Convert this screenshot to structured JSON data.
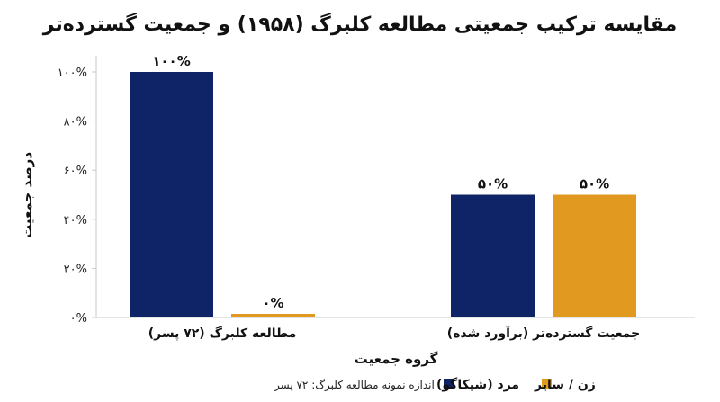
{
  "chart_data": {
    "type": "bar",
    "title": "مقایسه ترکیب جمعیتی مطالعه کلبرگ (۱۹۵۸) و جمعیت گسترده‌تر",
    "xlabel": "گروه جمعیت",
    "ylabel": "درصد جمعیت",
    "categories": [
      "مطالعه کلبرگ (۷۲ پسر)",
      "جمعیت گسترده‌تر (برآورد شده)"
    ],
    "series": [
      {
        "name": "مرد (شیکاگو)",
        "values": [
          100,
          50
        ],
        "labels": [
          "۱۰۰%",
          "۵۰%"
        ],
        "color": "#0f2467"
      },
      {
        "name": "زن / سایر",
        "values": [
          0,
          50
        ],
        "labels": [
          "۰%",
          "۵۰%"
        ],
        "color": "#e19a1f"
      }
    ],
    "ylim": [
      0,
      100
    ],
    "yticks": [
      0,
      20,
      40,
      60,
      80,
      100
    ],
    "ytick_labels": [
      "۰%",
      "۲۰%",
      "۴۰%",
      "۶۰%",
      "۸۰%",
      "۱۰۰%"
    ],
    "grid": false,
    "legend_position": "bottom-right",
    "note": "اندازه نمونه مطالعه کلبرگ: ۷۲ پسر"
  }
}
